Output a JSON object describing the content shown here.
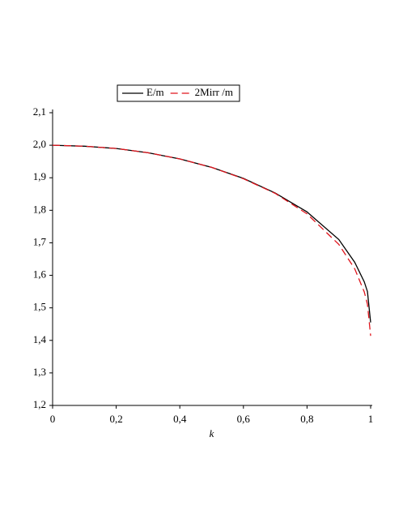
{
  "chart_data": {
    "type": "line",
    "xlabel": "k",
    "x": [
      0,
      0.1,
      0.2,
      0.3,
      0.4,
      0.5,
      0.6,
      0.7,
      0.8,
      0.9,
      0.95,
      0.98,
      0.99,
      1
    ],
    "series": [
      {
        "name": "E/m",
        "color": "#000000",
        "dash": "solid",
        "values": [
          2.0,
          1.997,
          1.99,
          1.977,
          1.958,
          1.932,
          1.898,
          1.853,
          1.795,
          1.71,
          1.64,
          1.58,
          1.55,
          1.455
        ]
      },
      {
        "name": "2Mirr /m",
        "color": "#e0141c",
        "dash": "dashed",
        "values": [
          2.0,
          1.997,
          1.99,
          1.977,
          1.958,
          1.932,
          1.897,
          1.852,
          1.789,
          1.695,
          1.62,
          1.549,
          1.511,
          1.414
        ]
      }
    ],
    "xlim": [
      0,
      1
    ],
    "ylim": [
      1.2,
      2.1
    ],
    "xticks": [
      0,
      {
        "value": 0.2,
        "label": "0,2"
      },
      {
        "value": 0.4,
        "label": "0,4"
      },
      {
        "value": 0.6,
        "label": "0,6"
      },
      {
        "value": 0.8,
        "label": "0,8"
      },
      1
    ],
    "yticks": [
      {
        "value": 1.2,
        "label": "1,2"
      },
      {
        "value": 1.3,
        "label": "1,3"
      },
      {
        "value": 1.4,
        "label": "1,4"
      },
      {
        "value": 1.5,
        "label": "1,5"
      },
      {
        "value": 1.6,
        "label": "1,6"
      },
      {
        "value": 1.7,
        "label": "1,7"
      },
      {
        "value": 1.8,
        "label": "1,8"
      },
      {
        "value": 1.9,
        "label": "1,9"
      },
      {
        "value": 2.0,
        "label": "2,0"
      },
      {
        "value": 2.1,
        "label": "2,1"
      }
    ],
    "legend": "top"
  }
}
